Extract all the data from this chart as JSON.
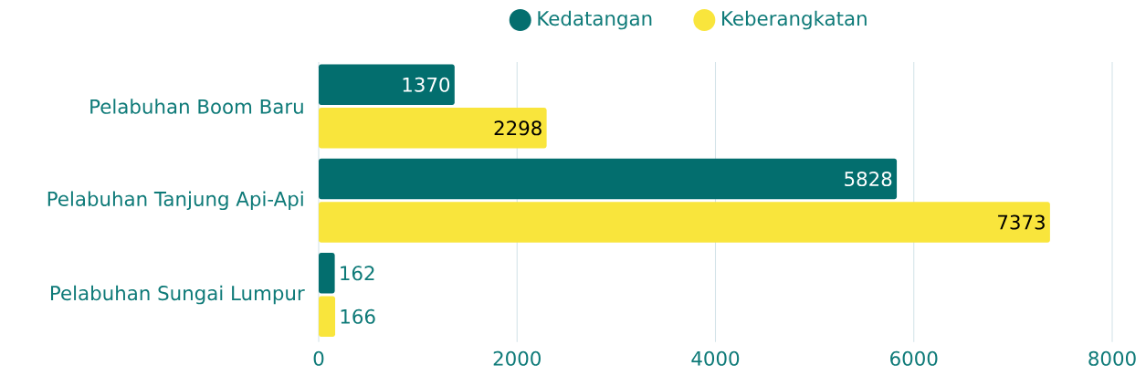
{
  "chart_data": {
    "type": "bar",
    "orientation": "horizontal",
    "categories": [
      "Pelabuhan Boom Baru",
      "Pelabuhan Tanjung Api-Api",
      "Pelabuhan Sungai Lumpur"
    ],
    "series": [
      {
        "name": "Kedatangan",
        "color": "#036e6e",
        "values": [
          1370,
          5828,
          162
        ]
      },
      {
        "name": "Keberangkatan",
        "color": "#f9e53c",
        "values": [
          2298,
          7373,
          166
        ]
      }
    ],
    "xlim": [
      0,
      8000
    ],
    "xticks": [
      0,
      2000,
      4000,
      6000,
      8000
    ],
    "grid": "x",
    "legend": "top",
    "data_labels": true
  }
}
